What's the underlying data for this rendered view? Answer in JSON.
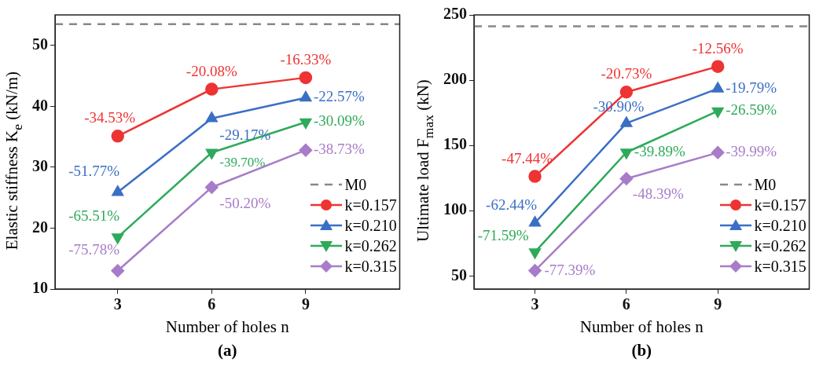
{
  "chart_data": [
    {
      "type": "line",
      "title": "(a)",
      "xlabel": "Number of holes n",
      "ylabel": "Elastic stiffness K$_{e}$ (kN/m)",
      "x": [
        3,
        6,
        9
      ],
      "xlim": [
        1,
        12
      ],
      "xticks": [
        3,
        6,
        9
      ],
      "ylim": [
        10,
        55
      ],
      "yticks": [
        10,
        20,
        30,
        40,
        50
      ],
      "line_style": "solid",
      "legend": "bottom right",
      "ref_lines": [
        {
          "axis": "y",
          "value": 53.5,
          "label": "M0",
          "color": "#888888",
          "line_style": "dashed"
        }
      ],
      "series": [
        {
          "name": "k=0.157",
          "color": "#ee3333",
          "marker": "circle",
          "values": [
            35.1,
            42.8,
            44.7
          ]
        },
        {
          "name": "k=0.210",
          "color": "#3a6fc4",
          "marker": "triangle",
          "values": [
            25.9,
            38.0,
            41.4
          ]
        },
        {
          "name": "k=0.262",
          "color": "#2eaa5a",
          "marker": "triangle-down",
          "values": [
            18.5,
            32.4,
            37.4
          ]
        },
        {
          "name": "k=0.315",
          "color": "#a87cc8",
          "marker": "diamond",
          "values": [
            13.0,
            26.7,
            32.8
          ]
        }
      ],
      "annotations": [
        {
          "text": "-34.53%",
          "x": 3,
          "y": 35.1
        },
        {
          "text": "-20.08%",
          "x": 6,
          "y": 42.8
        },
        {
          "text": "-16.33%",
          "x": 9,
          "y": 44.7
        },
        {
          "text": "-51.77%",
          "x": 3,
          "y": 25.9
        },
        {
          "text": "-29.17%",
          "x": 6,
          "y": 38.0
        },
        {
          "text": "-22.57%",
          "x": 9,
          "y": 41.4
        },
        {
          "text": "-65.51%",
          "x": 3,
          "y": 18.5
        },
        {
          "text": "-39.70%",
          "x": 6,
          "y": 32.4
        },
        {
          "text": "-30.09%",
          "x": 9,
          "y": 37.4
        },
        {
          "text": "-75.78%",
          "x": 3,
          "y": 13.0
        },
        {
          "text": "-50.20%",
          "x": 6,
          "y": 26.7
        },
        {
          "text": "-38.73%",
          "x": 9,
          "y": 32.8
        }
      ]
    },
    {
      "type": "line",
      "title": "(b)",
      "xlabel": "Number of holes n",
      "ylabel": "Ultimate load F$_{max}$ (kN)",
      "x": [
        3,
        6,
        9
      ],
      "xlim": [
        1,
        12
      ],
      "xticks": [
        3,
        6,
        9
      ],
      "ylim": [
        40,
        250
      ],
      "yticks": [
        50,
        100,
        150,
        200,
        250
      ],
      "line_style": "solid",
      "legend": "bottom right",
      "ref_lines": [
        {
          "axis": "y",
          "value": 241.3,
          "label": "M0",
          "color": "#888888",
          "line_style": "dashed"
        }
      ],
      "series": [
        {
          "name": "k=0.157",
          "color": "#ee3333",
          "marker": "circle",
          "values": [
            126.3,
            190.9,
            210.5
          ]
        },
        {
          "name": "k=0.210",
          "color": "#3a6fc4",
          "marker": "triangle",
          "values": [
            90.7,
            167.0,
            193.5
          ]
        },
        {
          "name": "k=0.262",
          "color": "#2eaa5a",
          "marker": "triangle-down",
          "values": [
            68.3,
            144.7,
            176.3
          ]
        },
        {
          "name": "k=0.315",
          "color": "#a87cc8",
          "marker": "diamond",
          "values": [
            54.1,
            124.5,
            144.5
          ]
        }
      ],
      "annotations": [
        {
          "text": "-47.44%",
          "x": 3,
          "y": 126.3
        },
        {
          "text": "-20.73%",
          "x": 6,
          "y": 190.9
        },
        {
          "text": "-12.56%",
          "x": 9,
          "y": 210.5
        },
        {
          "text": "-62.44%",
          "x": 3,
          "y": 90.7
        },
        {
          "text": "-30.90%",
          "x": 6,
          "y": 167.0
        },
        {
          "text": "-19.79%",
          "x": 9,
          "y": 193.5
        },
        {
          "text": "-71.59%",
          "x": 3,
          "y": 68.3
        },
        {
          "text": "-39.89%",
          "x": 6,
          "y": 144.7
        },
        {
          "text": "-26.59%",
          "x": 9,
          "y": 176.3
        },
        {
          "text": "-77.39%",
          "x": 3,
          "y": 54.1
        },
        {
          "text": "-48.39%",
          "x": 6,
          "y": 124.5
        },
        {
          "text": "-39.99%",
          "x": 9,
          "y": 144.5
        }
      ]
    }
  ]
}
